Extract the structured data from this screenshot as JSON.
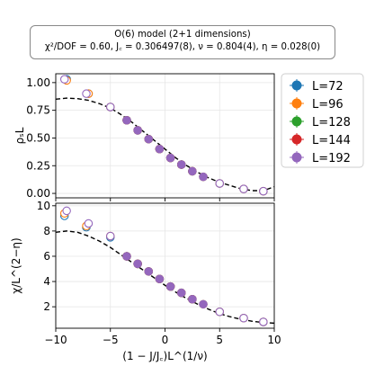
{
  "figure": {
    "title_line1": "O(6) model (2+1 dimensions)",
    "title_line2": "χ²/DOF = 0.60, J꜀ = 0.306497(8), ν = 0.804(4), η = 0.028(0)"
  },
  "legend": {
    "placement": "outside right, top",
    "entries": [
      {
        "label": "L=72",
        "color": "#1f77b4"
      },
      {
        "label": "L=96",
        "color": "#ff7f0e"
      },
      {
        "label": "L=128",
        "color": "#2ca02c"
      },
      {
        "label": "L=144",
        "color": "#d62728"
      },
      {
        "label": "L=192",
        "color": "#9467bd"
      }
    ]
  },
  "chart_data": [
    {
      "type": "scatter",
      "panel": "top",
      "ylabel": "ρₛL",
      "xlabel": "",
      "xlim": [
        -10,
        10
      ],
      "ylim": [
        -0.04,
        1.08
      ],
      "yticks": [
        "0.00",
        "0.25",
        "0.50",
        "0.75",
        "1.00"
      ],
      "xticks": [
        "−10",
        "−5",
        "0",
        "5",
        "10"
      ],
      "grid": true,
      "series": [
        {
          "name": "L=72",
          "color": "#1f77b4",
          "x": [
            -9.0,
            -7.0,
            -5.0,
            -3.5,
            -2.5,
            -1.5,
            -0.5,
            0.5,
            1.5,
            2.5,
            3.5,
            5.0,
            7.2,
            9.0
          ],
          "y": [
            1.03,
            0.9,
            0.78,
            0.66,
            0.57,
            0.49,
            0.4,
            0.32,
            0.26,
            0.2,
            0.15,
            0.09,
            0.04,
            0.02
          ]
        },
        {
          "name": "L=96",
          "color": "#ff7f0e",
          "x": [
            -9.0,
            -7.0,
            -5.0,
            -3.5,
            -2.5,
            -1.5,
            -0.5,
            0.5,
            1.5,
            2.5,
            3.5,
            5.0,
            7.2,
            9.0
          ],
          "y": [
            1.02,
            0.9,
            0.78,
            0.66,
            0.57,
            0.49,
            0.4,
            0.32,
            0.26,
            0.2,
            0.15,
            0.09,
            0.04,
            0.02
          ]
        },
        {
          "name": "L=128",
          "color": "#2ca02c",
          "x": [
            -3.5,
            -2.5,
            -1.5,
            -0.5,
            0.5,
            1.5,
            2.5
          ],
          "y": [
            0.66,
            0.57,
            0.49,
            0.4,
            0.32,
            0.26,
            0.2
          ]
        },
        {
          "name": "L=144",
          "color": "#d62728",
          "x": [
            -3.5,
            -2.5,
            -1.5,
            -0.5,
            0.5,
            1.5,
            2.5
          ],
          "y": [
            0.66,
            0.57,
            0.49,
            0.4,
            0.32,
            0.26,
            0.2
          ]
        },
        {
          "name": "L=192",
          "color": "#9467bd",
          "x": [
            -9.2,
            -7.2,
            -5.0,
            -3.5,
            -2.5,
            -1.5,
            -0.5,
            0.5,
            1.5,
            2.5,
            3.5,
            5.0,
            7.2,
            9.0
          ],
          "y": [
            1.03,
            0.9,
            0.78,
            0.66,
            0.57,
            0.49,
            0.4,
            0.32,
            0.26,
            0.2,
            0.15,
            0.09,
            0.04,
            0.02
          ]
        }
      ],
      "fit_curve": {
        "style": "dashed",
        "color": "#000000",
        "x": [
          -10,
          -9,
          -8,
          -7,
          -6,
          -5,
          -4,
          -3,
          -2,
          -1,
          0,
          1,
          2,
          3,
          4,
          5,
          6,
          7,
          8,
          9,
          10
        ],
        "y": [
          0.85,
          0.86,
          0.855,
          0.84,
          0.81,
          0.77,
          0.71,
          0.64,
          0.56,
          0.48,
          0.4,
          0.32,
          0.25,
          0.19,
          0.14,
          0.1,
          0.07,
          0.04,
          0.025,
          0.025,
          0.06
        ]
      }
    },
    {
      "type": "scatter",
      "panel": "bottom",
      "ylabel": "χ/L^(2−η)",
      "xlabel": "(1 − J/J꜀)L^(1/ν)",
      "xlim": [
        -10,
        10
      ],
      "ylim": [
        0.3,
        10.2
      ],
      "yticks": [
        "2",
        "4",
        "6",
        "8",
        "10"
      ],
      "xticks": [
        "−10",
        "−5",
        "0",
        "5",
        "10"
      ],
      "grid": true,
      "series": [
        {
          "name": "L=72",
          "color": "#1f77b4",
          "x": [
            -9.2,
            -7.2,
            -5.0,
            -3.5,
            -2.5,
            -1.5,
            -0.5,
            0.5,
            1.5,
            2.5,
            3.5,
            5.0,
            7.2,
            9.0
          ],
          "y": [
            9.2,
            8.3,
            7.5,
            6.0,
            5.4,
            4.8,
            4.2,
            3.6,
            3.1,
            2.6,
            2.2,
            1.6,
            1.1,
            0.8
          ]
        },
        {
          "name": "L=96",
          "color": "#ff7f0e",
          "x": [
            -9.2,
            -7.2,
            -5.0,
            -3.5,
            -2.5,
            -1.5,
            -0.5,
            0.5,
            1.5,
            2.5,
            3.5,
            5.0,
            7.2,
            9.0
          ],
          "y": [
            9.4,
            8.4,
            7.6,
            6.0,
            5.4,
            4.8,
            4.2,
            3.6,
            3.1,
            2.6,
            2.2,
            1.6,
            1.1,
            0.8
          ]
        },
        {
          "name": "L=128",
          "color": "#2ca02c",
          "x": [
            -3.5,
            -2.5,
            -1.5,
            -0.5,
            0.5,
            1.5,
            2.5
          ],
          "y": [
            6.0,
            5.4,
            4.8,
            4.2,
            3.6,
            3.1,
            2.6
          ]
        },
        {
          "name": "L=144",
          "color": "#d62728",
          "x": [
            -3.5,
            -2.5,
            -1.5,
            -0.5,
            0.5,
            1.5,
            2.5
          ],
          "y": [
            6.0,
            5.4,
            4.8,
            4.2,
            3.6,
            3.1,
            2.6
          ]
        },
        {
          "name": "L=192",
          "color": "#9467bd",
          "x": [
            -9.0,
            -7.0,
            -5.0,
            -3.5,
            -2.5,
            -1.5,
            -0.5,
            0.5,
            1.5,
            2.5,
            3.5,
            5.0,
            7.2,
            9.0
          ],
          "y": [
            9.6,
            8.6,
            7.6,
            6.0,
            5.4,
            4.8,
            4.2,
            3.6,
            3.1,
            2.6,
            2.2,
            1.6,
            1.1,
            0.8
          ]
        }
      ],
      "fit_curve": {
        "style": "dashed",
        "color": "#000000",
        "x": [
          -10,
          -9,
          -8,
          -7,
          -6,
          -5,
          -4,
          -3,
          -2,
          -1,
          0,
          1,
          2,
          3,
          4,
          5,
          6,
          7,
          8,
          9,
          10
        ],
        "y": [
          7.9,
          8.0,
          7.9,
          7.6,
          7.2,
          6.7,
          6.1,
          5.5,
          4.9,
          4.3,
          3.7,
          3.15,
          2.65,
          2.2,
          1.8,
          1.45,
          1.2,
          1.0,
          0.85,
          0.75,
          0.7
        ]
      }
    }
  ]
}
